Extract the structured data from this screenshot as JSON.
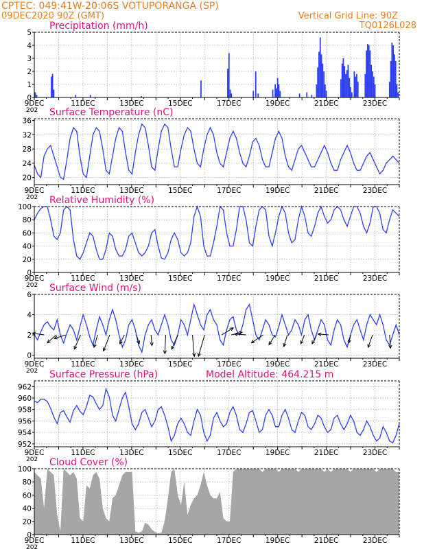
{
  "header": {
    "line1": "CPTEC:   049:41W-20:06S   VOTUPORANGA (SP)",
    "line2": "09DEC2020 90Z (GMT)",
    "grid_note": "Vertical Grid Line: 90Z",
    "code": "TQ0126L028"
  },
  "colors": {
    "header": "#e87d1e",
    "title": "#e0107a",
    "series": "#2d3ef0",
    "cloud": "#a6a6a6",
    "grid": "#b0b0b0",
    "axis": "#000000"
  },
  "x_axis": {
    "days": [
      "9DEC",
      "11DEC",
      "13DEC",
      "15DEC",
      "17DEC",
      "19DEC",
      "21DEC",
      "23DEC"
    ],
    "year_stub": "202"
  },
  "chart_data": [
    {
      "id": "precip",
      "type": "bar",
      "title": "Precipitation (mm/h)",
      "ylim": [
        0,
        5
      ],
      "yticks": [
        0,
        1,
        2,
        3,
        4,
        5
      ],
      "grid": true,
      "events": [
        [
          9.04,
          0.4
        ],
        [
          9.1,
          0.2
        ],
        [
          9.7,
          1.6
        ],
        [
          9.75,
          1.8
        ],
        [
          9.8,
          0.6
        ],
        [
          10.7,
          0.2
        ],
        [
          11.3,
          0.2
        ],
        [
          13.4,
          0.1
        ],
        [
          15.85,
          1.3
        ],
        [
          16.95,
          2.2
        ],
        [
          17.0,
          3.4
        ],
        [
          17.05,
          0.6
        ],
        [
          17.1,
          0.3
        ],
        [
          18.0,
          0.5
        ],
        [
          18.1,
          2.0
        ],
        [
          18.2,
          0.3
        ],
        [
          18.8,
          0.6
        ],
        [
          18.9,
          1.0
        ],
        [
          18.95,
          0.7
        ],
        [
          19.0,
          1.5
        ],
        [
          19.05,
          1.0
        ],
        [
          19.1,
          0.5
        ],
        [
          19.9,
          0.3
        ],
        [
          20.2,
          0.4
        ],
        [
          20.4,
          0.2
        ],
        [
          20.6,
          1.0
        ],
        [
          20.65,
          2.3
        ],
        [
          20.7,
          3.5
        ],
        [
          20.75,
          4.6
        ],
        [
          20.8,
          3.3
        ],
        [
          20.85,
          2.6
        ],
        [
          20.9,
          2.0
        ],
        [
          20.95,
          1.0
        ],
        [
          21.0,
          0.5
        ],
        [
          21.6,
          1.4
        ],
        [
          21.65,
          2.6
        ],
        [
          21.7,
          3.0
        ],
        [
          21.75,
          2.4
        ],
        [
          21.8,
          1.8
        ],
        [
          21.85,
          2.1
        ],
        [
          21.9,
          2.5
        ],
        [
          21.95,
          1.5
        ],
        [
          22.0,
          0.8
        ],
        [
          22.05,
          0.4
        ],
        [
          22.15,
          2.0
        ],
        [
          22.2,
          1.6
        ],
        [
          22.25,
          1.8
        ],
        [
          22.3,
          1.2
        ],
        [
          22.6,
          1.8
        ],
        [
          22.65,
          3.6
        ],
        [
          22.7,
          4.1
        ],
        [
          22.75,
          4.0
        ],
        [
          22.8,
          3.6
        ],
        [
          22.85,
          2.5
        ],
        [
          22.9,
          2.0
        ],
        [
          22.95,
          1.6
        ],
        [
          23.0,
          1.0
        ],
        [
          23.6,
          1.2
        ],
        [
          23.65,
          2.8
        ],
        [
          23.7,
          4.2
        ],
        [
          23.75,
          4.0
        ],
        [
          23.8,
          3.3
        ],
        [
          23.85,
          2.8
        ],
        [
          23.9,
          1.0
        ],
        [
          23.95,
          0.4
        ]
      ]
    },
    {
      "id": "temp",
      "type": "line",
      "title": "Surface Temperature (nC)",
      "ylim": [
        18,
        36.5
      ],
      "yticks": [
        20,
        24,
        28,
        32,
        36
      ],
      "grid": true,
      "values": [
        23.5,
        21,
        20,
        26,
        28,
        29,
        26,
        23,
        20,
        19.5,
        25,
        31,
        34,
        33,
        26,
        21,
        20,
        26,
        32,
        34,
        33,
        28,
        22,
        21,
        26,
        31,
        34,
        33,
        27,
        22,
        21,
        27,
        32,
        35,
        34,
        29,
        23,
        22,
        28,
        33,
        35,
        34,
        28,
        23,
        23,
        28,
        32,
        34,
        33,
        28,
        24,
        23,
        28,
        32,
        34,
        32,
        27,
        24,
        23,
        27,
        31,
        33,
        31,
        27,
        24,
        23,
        26,
        30,
        31,
        29,
        25,
        23,
        23,
        27,
        31,
        33,
        31,
        26,
        23,
        22,
        25,
        28,
        29,
        27,
        25,
        23,
        23,
        25,
        27,
        29,
        27,
        24,
        22,
        22,
        25,
        27,
        29,
        27,
        24,
        22,
        22,
        24,
        26,
        27,
        25,
        23,
        21,
        22,
        24,
        25,
        26,
        25,
        24
      ]
    },
    {
      "id": "rh",
      "type": "line",
      "title": "Relative Humidity (%)",
      "ylim": [
        0,
        100
      ],
      "yticks": [
        0,
        20,
        40,
        60,
        80,
        100
      ],
      "grid": true,
      "values": [
        80,
        90,
        97,
        100,
        100,
        80,
        55,
        50,
        60,
        95,
        100,
        95,
        50,
        25,
        20,
        30,
        45,
        60,
        55,
        35,
        20,
        20,
        35,
        60,
        55,
        35,
        25,
        25,
        35,
        55,
        60,
        45,
        30,
        25,
        30,
        40,
        60,
        65,
        40,
        22,
        20,
        30,
        50,
        60,
        50,
        30,
        25,
        30,
        45,
        85,
        100,
        85,
        40,
        25,
        25,
        45,
        70,
        100,
        95,
        60,
        40,
        40,
        65,
        100,
        100,
        80,
        45,
        40,
        70,
        95,
        100,
        95,
        55,
        40,
        60,
        85,
        100,
        90,
        60,
        45,
        50,
        80,
        100,
        85,
        60,
        55,
        70,
        90,
        100,
        85,
        75,
        80,
        95,
        100,
        95,
        80,
        70,
        85,
        100,
        100,
        90,
        70,
        60,
        75,
        100,
        100,
        90,
        65,
        60,
        80,
        95,
        90,
        85
      ]
    },
    {
      "id": "wind",
      "type": "line",
      "title": "Surface Wind (m/s)",
      "ylim": [
        -0.3,
        6
      ],
      "yticks": [
        0,
        2,
        4,
        6
      ],
      "grid": true,
      "values": [
        2.0,
        1.5,
        2.3,
        3.0,
        3.3,
        2.8,
        2.5,
        3.5,
        2.0,
        1.2,
        2.2,
        3.0,
        2.5,
        1.5,
        2.8,
        4.0,
        3.0,
        1.8,
        1.0,
        2.5,
        3.8,
        3.0,
        2.0,
        3.5,
        4.5,
        3.5,
        2.0,
        0.8,
        1.5,
        3.0,
        3.5,
        2.5,
        1.0,
        0.3,
        2.0,
        3.0,
        3.5,
        2.5,
        2.0,
        3.0,
        4.0,
        3.0,
        1.5,
        1.0,
        2.0,
        3.5,
        3.0,
        2.0,
        3.5,
        5.0,
        4.0,
        3.0,
        2.5,
        4.0,
        4.5,
        3.5,
        3.0,
        1.5,
        1.0,
        2.5,
        3.5,
        3.8,
        2.5,
        2.0,
        3.0,
        4.5,
        5.0,
        3.5,
        2.0,
        1.5,
        2.5,
        3.5,
        3.0,
        2.0,
        1.8,
        2.8,
        4.0,
        3.0,
        2.0,
        2.5,
        3.5,
        3.0,
        2.0,
        3.5,
        4.0,
        2.5,
        1.5,
        2.5,
        3.5,
        3.0,
        1.5,
        1.0,
        2.5,
        3.5,
        3.0,
        1.5,
        0.8,
        2.0,
        3.0,
        3.5,
        2.5,
        1.5,
        3.0,
        4.0,
        3.5,
        3.0,
        4.0,
        3.0,
        1.5,
        1.0,
        2.0,
        3.0,
        2.0
      ],
      "vectors": [
        [
          9.4,
          -1.3,
          0.2
        ],
        [
          9.9,
          -1.0,
          -0.9
        ],
        [
          10.3,
          -1.3,
          -0.4
        ],
        [
          10.9,
          -0.7,
          -1.6
        ],
        [
          11.6,
          -0.4,
          -1.4
        ],
        [
          12.1,
          -0.7,
          -1.8
        ],
        [
          12.7,
          -0.5,
          -1.0
        ],
        [
          13.2,
          0.3,
          -1.0
        ],
        [
          13.8,
          0.1,
          -1.2
        ],
        [
          14.4,
          -0.1,
          -2.1
        ],
        [
          14.9,
          -0.7,
          -1.6
        ],
        [
          15.5,
          0.2,
          -2.4
        ],
        [
          16.0,
          -0.7,
          -2.4
        ],
        [
          16.7,
          1.3,
          0.8
        ],
        [
          17.1,
          1.2,
          0.3
        ],
        [
          17.7,
          -1.3,
          0.1
        ],
        [
          18.4,
          -1.3,
          -0.9
        ],
        [
          18.9,
          -0.7,
          -1.1
        ],
        [
          19.4,
          -0.4,
          -1.3
        ],
        [
          20.1,
          -0.4,
          -1.0
        ],
        [
          20.6,
          -0.5,
          -1.0
        ],
        [
          21.1,
          -1.2,
          0.1
        ],
        [
          22.0,
          -0.2,
          -0.9
        ],
        [
          22.9,
          -0.5,
          -1.4
        ],
        [
          23.6,
          0.1,
          -1.5
        ]
      ]
    },
    {
      "id": "pressure",
      "type": "line",
      "title": "Surface Pressure (hPa)",
      "note": "Model Altitude: 464.215 m",
      "ylim": [
        951.5,
        963
      ],
      "yticks": [
        952,
        954,
        956,
        958,
        960,
        962
      ],
      "grid": true,
      "values": [
        959.5,
        959.2,
        959.8,
        959.8,
        959.4,
        958.2,
        956.7,
        955.5,
        957.5,
        957.8,
        956.7,
        955.8,
        957.8,
        958.7,
        957.7,
        957.1,
        958.5,
        960.5,
        960.2,
        959.0,
        958.0,
        958.7,
        961.6,
        960.2,
        957.0,
        956.0,
        958.0,
        960.0,
        961.0,
        958.5,
        955.5,
        954.5,
        955.5,
        957.5,
        958.0,
        956.5,
        955.0,
        956.0,
        958.0,
        958.5,
        957.0,
        955.0,
        952.5,
        953.5,
        955.5,
        956.5,
        955.5,
        954.0,
        953.5,
        956.0,
        958.0,
        957.0,
        954.0,
        952.5,
        953.5,
        956.5,
        957.5,
        956.0,
        955.0,
        955.5,
        957.5,
        958.5,
        957.0,
        954.5,
        954.0,
        955.5,
        957.5,
        957.8,
        956.0,
        954.0,
        954.5,
        957.0,
        958.0,
        957.0,
        955.0,
        955.0,
        957.0,
        958.0,
        956.5,
        954.5,
        954.0,
        956.0,
        957.5,
        957.0,
        955.0,
        954.5,
        955.5,
        957.0,
        956.5,
        955.0,
        954.0,
        954.5,
        956.5,
        957.0,
        955.5,
        954.5,
        955.5,
        957.0,
        956.0,
        954.0,
        953.5,
        954.5,
        956.0,
        955.0,
        953.5,
        952.5,
        953.0,
        955.0,
        954.0,
        952.5,
        952.2,
        953.5,
        955.5
      ]
    },
    {
      "id": "cloud",
      "type": "area",
      "title": "Cloud Cover (%)",
      "ylim": [
        0,
        100
      ],
      "yticks": [
        0,
        20,
        40,
        60,
        80,
        100
      ],
      "grid": true,
      "values": [
        95,
        90,
        85,
        40,
        100,
        95,
        90,
        30,
        5,
        100,
        95,
        90,
        95,
        85,
        25,
        20,
        75,
        70,
        90,
        95,
        85,
        40,
        25,
        20,
        55,
        60,
        75,
        90,
        95,
        95,
        95,
        5,
        3,
        5,
        18,
        15,
        8,
        4,
        2,
        3,
        20,
        55,
        95,
        100,
        60,
        45,
        80,
        30,
        45,
        55,
        60,
        75,
        95,
        75,
        60,
        55,
        55,
        65,
        25,
        20,
        20,
        95,
        100,
        100,
        100,
        100,
        100,
        100,
        100,
        100,
        95,
        100,
        100,
        100,
        100,
        95,
        100,
        100,
        100,
        100,
        100,
        95,
        100,
        100,
        100,
        100,
        100,
        100,
        100,
        95,
        100,
        95,
        100,
        100,
        100,
        100,
        100,
        95,
        100,
        100,
        100,
        100,
        100,
        100,
        100,
        95,
        100,
        100,
        100,
        100,
        100,
        95,
        95
      ]
    }
  ]
}
